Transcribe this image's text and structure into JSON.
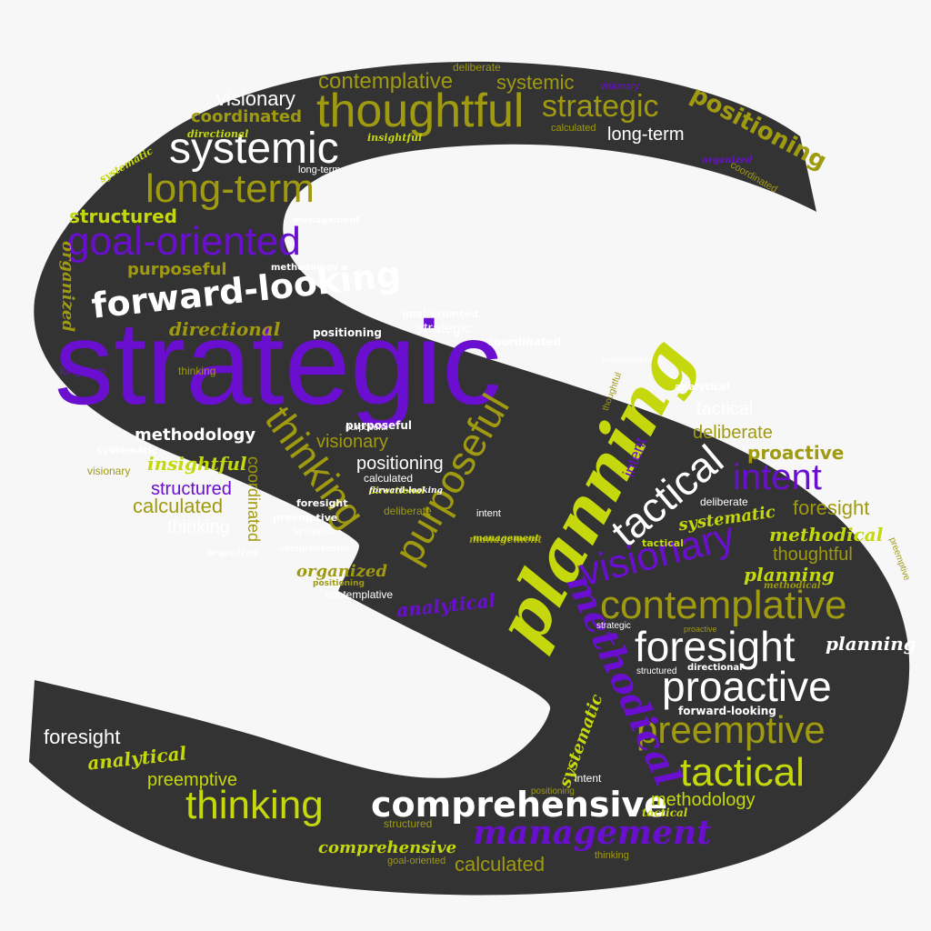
{
  "colors": {
    "background": "#f7f7f7",
    "shape": "#333333",
    "purple": "#6a0fd0",
    "lime": "#c5d80d",
    "olive": "#a09a10",
    "white": "#ffffff",
    "gray": "#6f6f6f"
  },
  "words": [
    {
      "text": "strategic",
      "c": "purple"
    },
    {
      "text": "planning",
      "c": "lime"
    },
    {
      "text": "thoughtful",
      "c": "olive"
    },
    {
      "text": "systemic",
      "c": "white"
    },
    {
      "text": "long-term",
      "c": "olive"
    },
    {
      "text": "goal-oriented",
      "c": "purple"
    },
    {
      "text": "forward-looking",
      "c": "white"
    },
    {
      "text": "thinking",
      "c": "olive"
    },
    {
      "text": "purposeful",
      "c": "olive"
    },
    {
      "text": "tactical",
      "c": "white"
    },
    {
      "text": "intent",
      "c": "purple"
    },
    {
      "text": "visionary",
      "c": "purple"
    },
    {
      "text": "contemplative",
      "c": "olive"
    },
    {
      "text": "foresight",
      "c": "white"
    },
    {
      "text": "proactive",
      "c": "white"
    },
    {
      "text": "preemptive",
      "c": "olive"
    },
    {
      "text": "tactical",
      "c": "lime"
    },
    {
      "text": "methodical",
      "c": "purple"
    },
    {
      "text": "comprehensive",
      "c": "white"
    },
    {
      "text": "management",
      "c": "purple"
    },
    {
      "text": "thinking",
      "c": "lime"
    },
    {
      "text": "strategic",
      "c": "olive"
    },
    {
      "text": "positioning",
      "c": "olive"
    },
    {
      "text": "contemplative",
      "c": "olive"
    },
    {
      "text": "visionary",
      "c": "white"
    },
    {
      "text": "coordinated",
      "c": "olive"
    },
    {
      "text": "systemic",
      "c": "olive"
    },
    {
      "text": "long-term",
      "c": "white"
    },
    {
      "text": "structured",
      "c": "lime"
    },
    {
      "text": "purposeful",
      "c": "olive"
    },
    {
      "text": "directional",
      "c": "olive"
    },
    {
      "text": "organized",
      "c": "olive"
    },
    {
      "text": "methodology",
      "c": "white"
    },
    {
      "text": "insightful",
      "c": "lime"
    },
    {
      "text": "structured",
      "c": "purple"
    },
    {
      "text": "calculated",
      "c": "olive"
    },
    {
      "text": "thinking",
      "c": "white"
    },
    {
      "text": "visionary",
      "c": "olive"
    },
    {
      "text": "positioning",
      "c": "white"
    },
    {
      "text": "coordinated",
      "c": "olive"
    },
    {
      "text": "deliberate",
      "c": "olive"
    },
    {
      "text": "proactive",
      "c": "olive"
    },
    {
      "text": "tactical",
      "c": "white"
    },
    {
      "text": "intent",
      "c": "purple"
    },
    {
      "text": "foresight",
      "c": "olive"
    },
    {
      "text": "systematic",
      "c": "lime"
    },
    {
      "text": "methodical",
      "c": "lime"
    },
    {
      "text": "thoughtful",
      "c": "olive"
    },
    {
      "text": "planning",
      "c": "lime"
    },
    {
      "text": "planning",
      "c": "white"
    },
    {
      "text": "organized",
      "c": "olive"
    },
    {
      "text": "analytical",
      "c": "purple"
    },
    {
      "text": "foresight",
      "c": "white"
    },
    {
      "text": "analytical",
      "c": "lime"
    },
    {
      "text": "preemptive",
      "c": "lime"
    },
    {
      "text": "comprehensive",
      "c": "lime"
    },
    {
      "text": "calculated",
      "c": "olive"
    },
    {
      "text": "methodology",
      "c": "lime"
    },
    {
      "text": "systematic",
      "c": "lime"
    },
    {
      "text": "strategic",
      "c": "white"
    },
    {
      "text": "coordinated",
      "c": "white"
    },
    {
      "text": "positioning",
      "c": "white"
    },
    {
      "text": "purposeful",
      "c": "white"
    },
    {
      "text": "deliberate",
      "c": "olive"
    },
    {
      "text": "deliberate",
      "c": "white"
    },
    {
      "text": "directional",
      "c": "white"
    },
    {
      "text": "forward-looking",
      "c": "white"
    },
    {
      "text": "goal-oriented",
      "c": "white"
    },
    {
      "text": "contemplative",
      "c": "white"
    },
    {
      "text": "management",
      "c": "olive"
    },
    {
      "text": "analytical",
      "c": "white"
    },
    {
      "text": "intent",
      "c": "white"
    },
    {
      "text": "tactical",
      "c": "lime"
    },
    {
      "text": "long-term",
      "c": "white"
    },
    {
      "text": "preemptive",
      "c": "white"
    },
    {
      "text": "thinking",
      "c": "olive"
    },
    {
      "text": "calculated",
      "c": "white"
    },
    {
      "text": "visionary",
      "c": "olive"
    },
    {
      "text": "systemic",
      "c": "white"
    },
    {
      "text": "structured",
      "c": "olive"
    },
    {
      "text": "insightful",
      "c": "lime"
    },
    {
      "text": "organized",
      "c": "white"
    },
    {
      "text": "directional",
      "c": "lime"
    },
    {
      "text": "management",
      "c": "lime"
    },
    {
      "text": "methodical",
      "c": "olive"
    },
    {
      "text": "systematic",
      "c": "white"
    },
    {
      "text": "goal-oriented",
      "c": "olive"
    },
    {
      "text": "intent",
      "c": "white"
    },
    {
      "text": "foresight",
      "c": "white"
    },
    {
      "text": "tactical",
      "c": "lime"
    },
    {
      "text": "contemplative",
      "c": "white"
    },
    {
      "text": "management",
      "c": "white"
    },
    {
      "text": "coordinated",
      "c": "olive"
    },
    {
      "text": "positioning",
      "c": "olive"
    },
    {
      "text": "organized",
      "c": "purple"
    },
    {
      "text": "deliberate",
      "c": "olive"
    },
    {
      "text": "visionary",
      "c": "purple"
    },
    {
      "text": "calculated",
      "c": "olive"
    },
    {
      "text": "thinking",
      "c": "olive"
    },
    {
      "text": "long-term",
      "c": "purple"
    },
    {
      "text": "structured",
      "c": "white"
    },
    {
      "text": "strategic",
      "c": "white"
    },
    {
      "text": "methodology",
      "c": "white"
    },
    {
      "text": "purposeful",
      "c": "white"
    },
    {
      "text": "forward-looking",
      "c": "white"
    },
    {
      "text": "comprehensive",
      "c": "white"
    },
    {
      "text": "thoughtful",
      "c": "olive"
    },
    {
      "text": "proactive",
      "c": "olive"
    },
    {
      "text": "preemptive",
      "c": "olive"
    },
    {
      "text": "positioning",
      "c": "olive"
    },
    {
      "text": "systematic",
      "c": "lime"
    },
    {
      "text": "directional",
      "c": "lime"
    }
  ]
}
